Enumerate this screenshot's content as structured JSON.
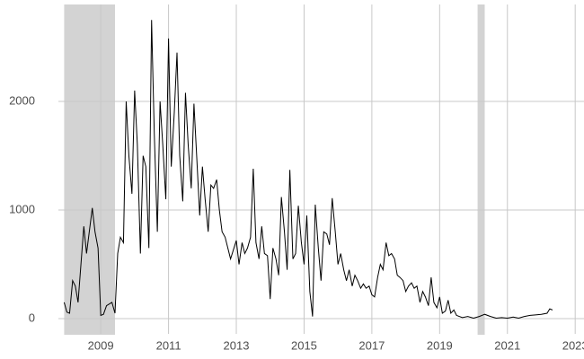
{
  "chart_data": {
    "type": "line",
    "x": [
      2007.92,
      2008.0,
      2008.08,
      2008.17,
      2008.25,
      2008.33,
      2008.5,
      2008.58,
      2008.75,
      2008.83,
      2008.92,
      2009.0,
      2009.08,
      2009.17,
      2009.33,
      2009.42,
      2009.5,
      2009.58,
      2009.67,
      2009.75,
      2009.83,
      2009.92,
      2010.0,
      2010.08,
      2010.17,
      2010.25,
      2010.33,
      2010.42,
      2010.5,
      2010.58,
      2010.67,
      2010.75,
      2010.83,
      2010.92,
      2011.0,
      2011.08,
      2011.17,
      2011.25,
      2011.33,
      2011.42,
      2011.5,
      2011.58,
      2011.67,
      2011.75,
      2011.83,
      2011.92,
      2012.0,
      2012.08,
      2012.17,
      2012.25,
      2012.33,
      2012.42,
      2012.5,
      2012.58,
      2012.67,
      2012.75,
      2012.83,
      2013.0,
      2013.08,
      2013.17,
      2013.25,
      2013.33,
      2013.42,
      2013.5,
      2013.58,
      2013.67,
      2013.75,
      2013.83,
      2013.92,
      2014.0,
      2014.08,
      2014.17,
      2014.25,
      2014.33,
      2014.42,
      2014.5,
      2014.58,
      2014.67,
      2014.75,
      2014.83,
      2014.92,
      2015.0,
      2015.08,
      2015.17,
      2015.25,
      2015.33,
      2015.42,
      2015.5,
      2015.58,
      2015.67,
      2015.75,
      2015.83,
      2015.92,
      2016.0,
      2016.08,
      2016.17,
      2016.25,
      2016.33,
      2016.42,
      2016.5,
      2016.58,
      2016.67,
      2016.75,
      2016.83,
      2016.92,
      2017.0,
      2017.08,
      2017.17,
      2017.25,
      2017.33,
      2017.42,
      2017.5,
      2017.58,
      2017.67,
      2017.75,
      2017.83,
      2017.92,
      2018.0,
      2018.08,
      2018.17,
      2018.25,
      2018.33,
      2018.42,
      2018.5,
      2018.58,
      2018.67,
      2018.75,
      2018.83,
      2018.92,
      2019.0,
      2019.08,
      2019.17,
      2019.25,
      2019.33,
      2019.42,
      2019.5,
      2019.67,
      2019.83,
      2020.0,
      2020.17,
      2020.33,
      2020.5,
      2020.67,
      2020.83,
      2021.0,
      2021.17,
      2021.33,
      2021.5,
      2021.67,
      2021.83,
      2022.0,
      2022.17,
      2022.25,
      2022.33
    ],
    "values": [
      150,
      60,
      50,
      350,
      300,
      150,
      850,
      600,
      1020,
      800,
      650,
      30,
      40,
      120,
      150,
      50,
      600,
      750,
      700,
      2000,
      1500,
      1150,
      2100,
      1600,
      600,
      1500,
      1400,
      650,
      2750,
      1700,
      800,
      2000,
      1600,
      1100,
      2580,
      1400,
      1900,
      2450,
      1500,
      1080,
      2080,
      1600,
      1200,
      1980,
      1500,
      950,
      1400,
      1100,
      800,
      1230,
      1200,
      1280,
      1000,
      800,
      750,
      650,
      550,
      720,
      500,
      700,
      600,
      650,
      750,
      1380,
      700,
      550,
      850,
      600,
      580,
      180,
      650,
      550,
      400,
      1120,
      800,
      450,
      1370,
      550,
      600,
      1040,
      700,
      500,
      950,
      250,
      20,
      1050,
      650,
      350,
      800,
      780,
      680,
      1110,
      800,
      500,
      600,
      450,
      350,
      450,
      300,
      400,
      350,
      280,
      320,
      280,
      300,
      220,
      200,
      380,
      500,
      450,
      700,
      580,
      600,
      550,
      400,
      380,
      350,
      250,
      300,
      330,
      280,
      300,
      150,
      250,
      200,
      120,
      380,
      150,
      100,
      200,
      50,
      70,
      170,
      50,
      80,
      30,
      10,
      20,
      5,
      20,
      40,
      20,
      5,
      10,
      5,
      15,
      5,
      20,
      30,
      35,
      40,
      50,
      90,
      80
    ],
    "color": "#000000",
    "shaded": [
      [
        2007.92,
        2009.42
      ],
      [
        2020.12,
        2020.33
      ]
    ],
    "shade_color": "#d3d3d3",
    "xlim": [
      2007.75,
      2023.26
    ],
    "ylim": [
      -140,
      2893
    ],
    "xticks": [
      2009,
      2011,
      2013,
      2015,
      2017,
      2019,
      2021,
      2023
    ],
    "yticks": [
      0,
      1000,
      2000
    ],
    "grid": true
  }
}
